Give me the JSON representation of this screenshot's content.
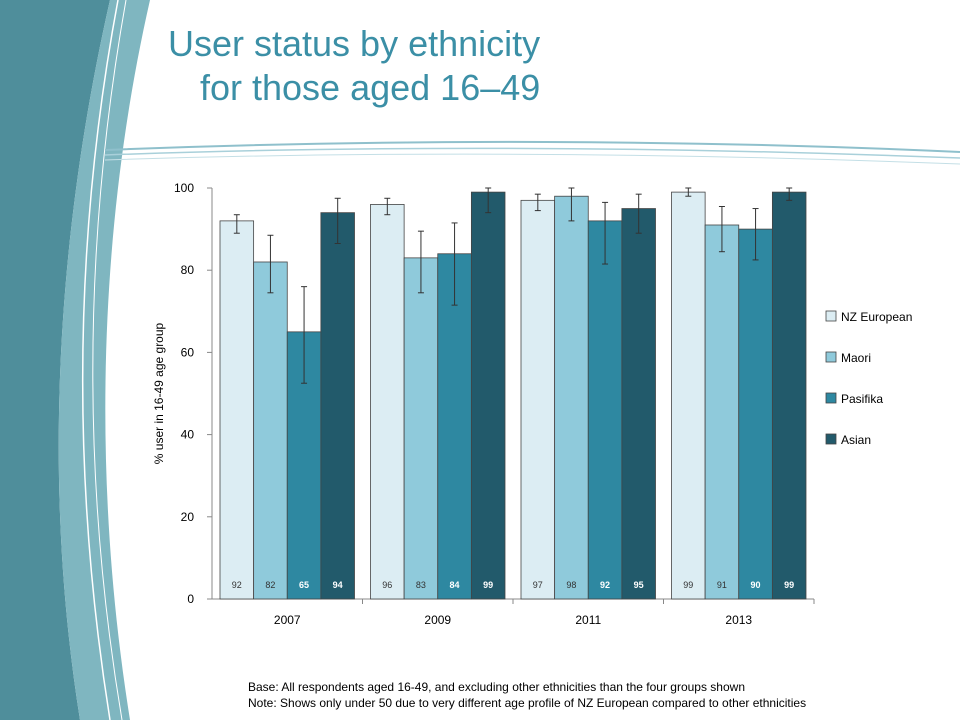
{
  "slide": {
    "title_line1": "User status by ethnicity",
    "title_line2": "for those aged 16–49",
    "base_note": "Base: All respondents aged 16-49, and excluding other ethnicities than the four groups shown",
    "note": "Note: Shows only under 50 due to very different age profile of NZ European compared to other ethnicities"
  },
  "colors": {
    "title": "#3b8fa6",
    "decoration_band": "#4f9aa6",
    "series": [
      "#dcedf3",
      "#8fcadb",
      "#2e88a1",
      "#225a6b"
    ]
  },
  "chart_data": {
    "type": "bar",
    "categories": [
      "2007",
      "2009",
      "2011",
      "2013"
    ],
    "series": [
      {
        "name": "NZ European",
        "values": [
          92,
          96,
          97,
          99
        ],
        "error": [
          [
            89,
            93.5
          ],
          [
            93.5,
            97.5
          ],
          [
            94.5,
            98.5
          ],
          [
            98,
            100
          ]
        ]
      },
      {
        "name": "Maori",
        "values": [
          82,
          83,
          98,
          91
        ],
        "error": [
          [
            74.5,
            88.5
          ],
          [
            74.5,
            89.5
          ],
          [
            92,
            100
          ],
          [
            84.5,
            95.5
          ]
        ]
      },
      {
        "name": "Pasifika",
        "values": [
          65,
          84,
          92,
          90
        ],
        "error": [
          [
            52.5,
            76
          ],
          [
            71.5,
            91.5
          ],
          [
            81.5,
            96.5
          ],
          [
            82.5,
            95
          ]
        ]
      },
      {
        "name": "Asian",
        "values": [
          94,
          99,
          95,
          99
        ],
        "error": [
          [
            86.5,
            97.5
          ],
          [
            94,
            100
          ],
          [
            89,
            98.5
          ],
          [
            97,
            100
          ]
        ]
      }
    ],
    "ylabel": "% user in 16-49 age group",
    "xlabel": "",
    "ylim": [
      0,
      100
    ],
    "yticks": [
      0,
      20,
      40,
      60,
      80,
      100
    ],
    "data_labels": true,
    "legend": "right",
    "grid": false
  }
}
